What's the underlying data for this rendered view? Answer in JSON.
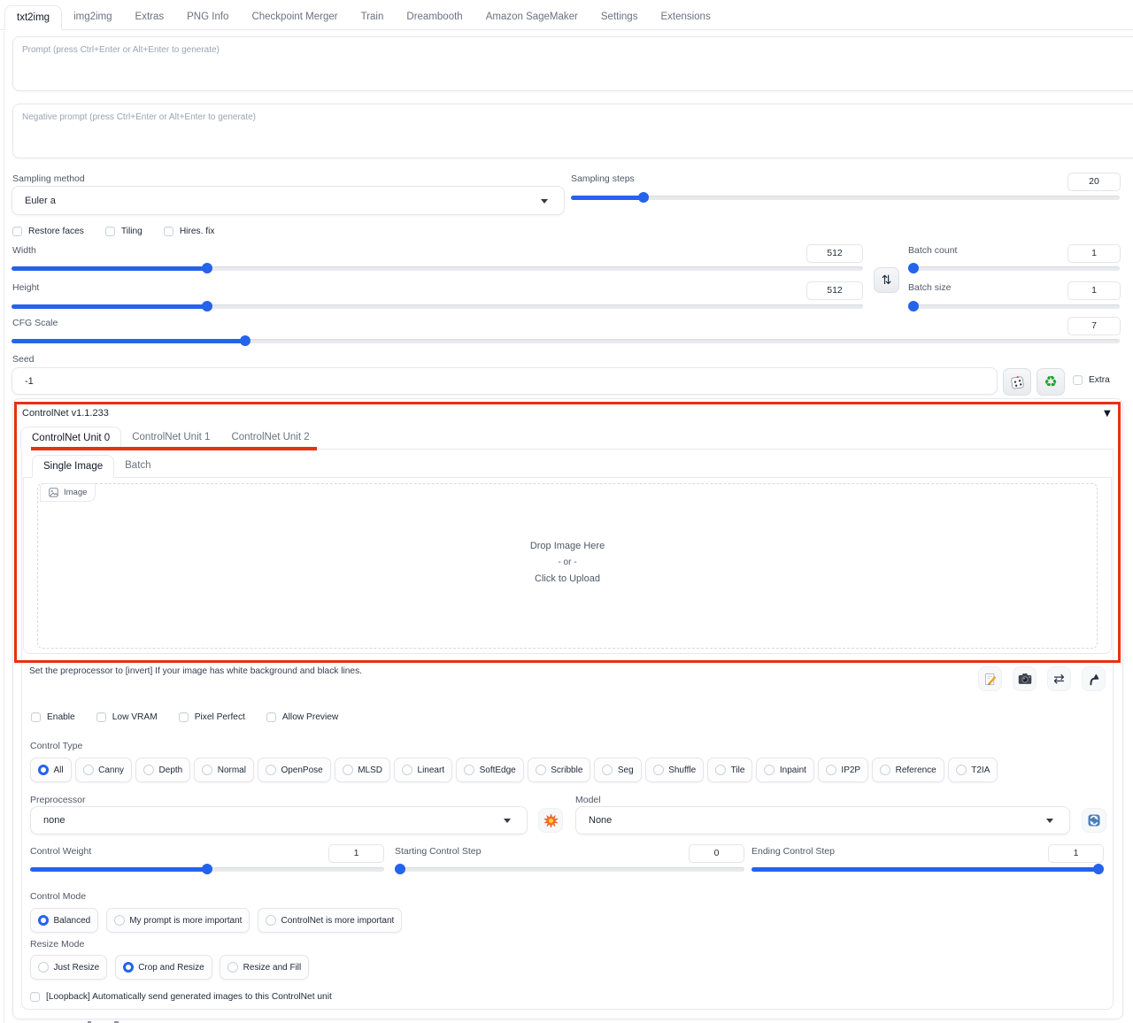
{
  "tabs": [
    {
      "label": "txt2img",
      "active": true
    },
    {
      "label": "img2img",
      "active": false
    },
    {
      "label": "Extras",
      "active": false
    },
    {
      "label": "PNG Info",
      "active": false
    },
    {
      "label": "Checkpoint Merger",
      "active": false
    },
    {
      "label": "Train",
      "active": false
    },
    {
      "label": "Dreambooth",
      "active": false
    },
    {
      "label": "Amazon SageMaker",
      "active": false
    },
    {
      "label": "Settings",
      "active": false
    },
    {
      "label": "Extensions",
      "active": false
    }
  ],
  "prompt": {
    "placeholder": "Prompt (press Ctrl+Enter or Alt+Enter to generate)"
  },
  "negative_prompt": {
    "placeholder": "Negative prompt (press Ctrl+Enter or Alt+Enter to generate)"
  },
  "sampling_method": {
    "label": "Sampling method",
    "value": "Euler a"
  },
  "sampling_steps": {
    "label": "Sampling steps",
    "value": "20",
    "percent": 12.5
  },
  "option_checkboxes": [
    {
      "label": "Restore faces",
      "checked": false
    },
    {
      "label": "Tiling",
      "checked": false
    },
    {
      "label": "Hires. fix",
      "checked": false
    }
  ],
  "width": {
    "label": "Width",
    "value": "512",
    "percent": 22.6
  },
  "height": {
    "label": "Height",
    "value": "512",
    "percent": 22.6
  },
  "batch_count": {
    "label": "Batch count",
    "value": "1",
    "percent": 0
  },
  "batch_size": {
    "label": "Batch size",
    "value": "1",
    "percent": 0
  },
  "cfg_scale": {
    "label": "CFG Scale",
    "value": "7",
    "percent": 20.8
  },
  "seed": {
    "label": "Seed",
    "value": "-1",
    "extra_label": "Extra",
    "extra_checked": false
  },
  "icons": {
    "swap_dimensions": "⇅",
    "mirror_webcam": "⇄",
    "recycle": "♻",
    "collapse_arrow": "▼"
  },
  "controlnet": {
    "title": "ControlNet v1.1.233",
    "unit_tabs": [
      {
        "label": "ControlNet Unit 0",
        "active": true
      },
      {
        "label": "ControlNet Unit 1",
        "active": false
      },
      {
        "label": "ControlNet Unit 2",
        "active": false
      }
    ],
    "image_tabs": [
      {
        "label": "Single Image",
        "active": true
      },
      {
        "label": "Batch",
        "active": false
      }
    ],
    "image_badge": "Image",
    "dropzone": {
      "line1": "Drop Image Here",
      "line2": "- or -",
      "line3": "Click to Upload"
    },
    "hint": "Set the preprocessor to [invert] If your image has white background and black lines.",
    "checkboxes": [
      {
        "label": "Enable",
        "checked": false
      },
      {
        "label": "Low VRAM",
        "checked": false
      },
      {
        "label": "Pixel Perfect",
        "checked": false
      },
      {
        "label": "Allow Preview",
        "checked": false
      }
    ],
    "control_type": {
      "label": "Control Type",
      "options": [
        {
          "label": "All",
          "selected": true
        },
        {
          "label": "Canny",
          "selected": false
        },
        {
          "label": "Depth",
          "selected": false
        },
        {
          "label": "Normal",
          "selected": false
        },
        {
          "label": "OpenPose",
          "selected": false
        },
        {
          "label": "MLSD",
          "selected": false
        },
        {
          "label": "Lineart",
          "selected": false
        },
        {
          "label": "SoftEdge",
          "selected": false
        },
        {
          "label": "Scribble",
          "selected": false
        },
        {
          "label": "Seg",
          "selected": false
        },
        {
          "label": "Shuffle",
          "selected": false
        },
        {
          "label": "Tile",
          "selected": false
        },
        {
          "label": "Inpaint",
          "selected": false
        },
        {
          "label": "IP2P",
          "selected": false
        },
        {
          "label": "Reference",
          "selected": false
        },
        {
          "label": "T2IA",
          "selected": false
        }
      ]
    },
    "preprocessor": {
      "label": "Preprocessor",
      "value": "none"
    },
    "model": {
      "label": "Model",
      "value": "None"
    },
    "control_weight": {
      "label": "Control Weight",
      "value": "1",
      "percent": 50
    },
    "starting_step": {
      "label": "Starting Control Step",
      "value": "0",
      "percent": 0
    },
    "ending_step": {
      "label": "Ending Control Step",
      "value": "1",
      "percent": 100
    },
    "control_mode": {
      "label": "Control Mode",
      "options": [
        {
          "label": "Balanced",
          "selected": true
        },
        {
          "label": "My prompt is more important",
          "selected": false
        },
        {
          "label": "ControlNet is more important",
          "selected": false
        }
      ]
    },
    "resize_mode": {
      "label": "Resize Mode",
      "options": [
        {
          "label": "Just Resize",
          "selected": false
        },
        {
          "label": "Crop and Resize",
          "selected": true
        },
        {
          "label": "Resize and Fill",
          "selected": false
        }
      ]
    },
    "loopback": {
      "label": "[Loopback] Automatically send generated images to this ControlNet unit",
      "checked": false
    }
  },
  "colors": {
    "accent": "#2563eb",
    "annotation": "#e5320f"
  }
}
